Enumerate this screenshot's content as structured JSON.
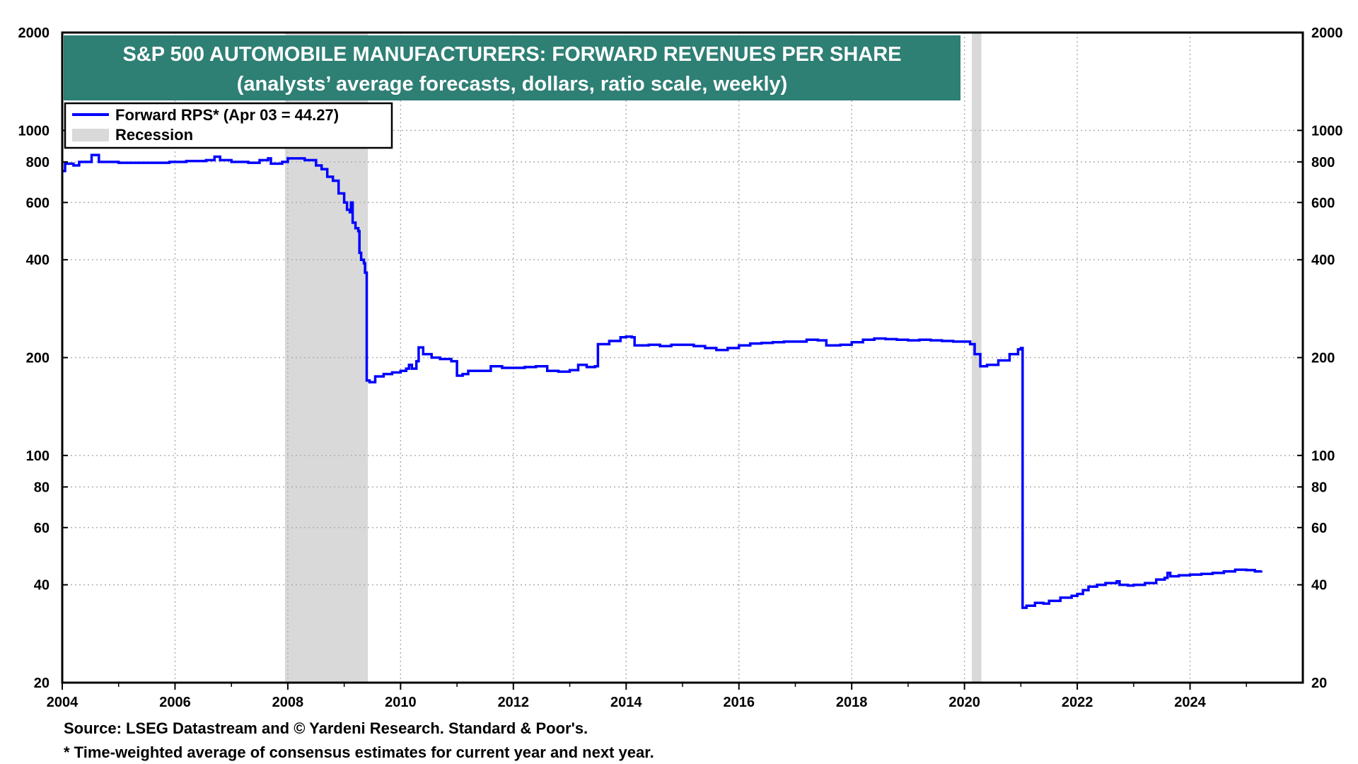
{
  "chart_data": {
    "type": "line",
    "title": "S&P 500 AUTOMOBILE MANUFACTURERS: FORWARD REVENUES PER SHARE",
    "subtitle": "(analysts’ average forecasts, dollars, ratio scale, weekly)",
    "scale": "log",
    "ylim": [
      20,
      2000
    ],
    "xlim": [
      2004.0,
      2026.0
    ],
    "y_ticks": [
      "20",
      "40",
      "60",
      "80",
      "100",
      "200",
      "400",
      "600",
      "800",
      "1000",
      "2000"
    ],
    "y_tick_values": [
      20,
      40,
      60,
      80,
      100,
      200,
      400,
      600,
      800,
      1000,
      2000
    ],
    "x_ticks": [
      "2004",
      "2006",
      "2008",
      "2010",
      "2012",
      "2014",
      "2016",
      "2018",
      "2020",
      "2022",
      "2024"
    ],
    "x_tick_values": [
      2004,
      2006,
      2008,
      2010,
      2012,
      2014,
      2016,
      2018,
      2020,
      2022,
      2024
    ],
    "legend": [
      {
        "label": "Forward RPS* (Apr 03 = 44.27)",
        "kind": "line",
        "color": "#0000ff"
      },
      {
        "label": "Recession",
        "kind": "box",
        "color": "#d9d9d9"
      }
    ],
    "recessions": [
      [
        2007.95,
        2009.42
      ],
      [
        2020.13,
        2020.3
      ]
    ],
    "series": [
      {
        "name": "Forward RPS*",
        "color": "#0000ff",
        "points": [
          [
            2004.0,
            750
          ],
          [
            2004.05,
            790
          ],
          [
            2004.15,
            790
          ],
          [
            2004.2,
            780
          ],
          [
            2004.3,
            800
          ],
          [
            2004.45,
            800
          ],
          [
            2004.52,
            840
          ],
          [
            2004.6,
            840
          ],
          [
            2004.65,
            800
          ],
          [
            2005.0,
            795
          ],
          [
            2005.3,
            795
          ],
          [
            2005.6,
            795
          ],
          [
            2005.9,
            800
          ],
          [
            2006.2,
            805
          ],
          [
            2006.4,
            805
          ],
          [
            2006.55,
            810
          ],
          [
            2006.7,
            830
          ],
          [
            2006.8,
            810
          ],
          [
            2007.0,
            800
          ],
          [
            2007.3,
            795
          ],
          [
            2007.5,
            810
          ],
          [
            2007.65,
            820
          ],
          [
            2007.7,
            790
          ],
          [
            2007.9,
            800
          ],
          [
            2008.0,
            820
          ],
          [
            2008.2,
            820
          ],
          [
            2008.3,
            810
          ],
          [
            2008.5,
            780
          ],
          [
            2008.6,
            760
          ],
          [
            2008.7,
            720
          ],
          [
            2008.8,
            700
          ],
          [
            2008.9,
            640
          ],
          [
            2009.0,
            600
          ],
          [
            2009.05,
            570
          ],
          [
            2009.1,
            560
          ],
          [
            2009.12,
            600
          ],
          [
            2009.15,
            520
          ],
          [
            2009.2,
            500
          ],
          [
            2009.25,
            490
          ],
          [
            2009.27,
            420
          ],
          [
            2009.3,
            400
          ],
          [
            2009.35,
            390
          ],
          [
            2009.37,
            365
          ],
          [
            2009.4,
            170
          ],
          [
            2009.45,
            168
          ],
          [
            2009.55,
            175
          ],
          [
            2009.7,
            178
          ],
          [
            2009.85,
            180
          ],
          [
            2010.0,
            182
          ],
          [
            2010.1,
            185
          ],
          [
            2010.15,
            190
          ],
          [
            2010.2,
            185
          ],
          [
            2010.28,
            195
          ],
          [
            2010.32,
            215
          ],
          [
            2010.4,
            205
          ],
          [
            2010.55,
            200
          ],
          [
            2010.7,
            198
          ],
          [
            2010.9,
            195
          ],
          [
            2011.0,
            176
          ],
          [
            2011.1,
            178
          ],
          [
            2011.2,
            182
          ],
          [
            2011.4,
            182
          ],
          [
            2011.6,
            188
          ],
          [
            2011.8,
            186
          ],
          [
            2012.0,
            186
          ],
          [
            2012.2,
            187
          ],
          [
            2012.4,
            188
          ],
          [
            2012.6,
            182
          ],
          [
            2012.8,
            181
          ],
          [
            2013.0,
            183
          ],
          [
            2013.15,
            190
          ],
          [
            2013.3,
            187
          ],
          [
            2013.45,
            188
          ],
          [
            2013.5,
            220
          ],
          [
            2013.7,
            225
          ],
          [
            2013.9,
            231
          ],
          [
            2014.0,
            232
          ],
          [
            2014.1,
            231
          ],
          [
            2014.15,
            218
          ],
          [
            2014.4,
            219
          ],
          [
            2014.6,
            217
          ],
          [
            2014.8,
            219
          ],
          [
            2015.0,
            219
          ],
          [
            2015.2,
            217
          ],
          [
            2015.4,
            214
          ],
          [
            2015.6,
            211
          ],
          [
            2015.8,
            214
          ],
          [
            2016.0,
            218
          ],
          [
            2016.2,
            221
          ],
          [
            2016.4,
            222
          ],
          [
            2016.6,
            223
          ],
          [
            2016.8,
            224
          ],
          [
            2017.0,
            224
          ],
          [
            2017.2,
            227
          ],
          [
            2017.4,
            226
          ],
          [
            2017.55,
            218
          ],
          [
            2017.8,
            219
          ],
          [
            2018.0,
            223
          ],
          [
            2018.2,
            227
          ],
          [
            2018.4,
            229
          ],
          [
            2018.6,
            228
          ],
          [
            2018.8,
            227
          ],
          [
            2019.0,
            226
          ],
          [
            2019.2,
            227
          ],
          [
            2019.4,
            226
          ],
          [
            2019.6,
            225
          ],
          [
            2019.8,
            224
          ],
          [
            2020.0,
            224
          ],
          [
            2020.1,
            220
          ],
          [
            2020.18,
            205
          ],
          [
            2020.28,
            188
          ],
          [
            2020.4,
            190
          ],
          [
            2020.6,
            196
          ],
          [
            2020.8,
            205
          ],
          [
            2020.95,
            212
          ],
          [
            2021.0,
            214
          ],
          [
            2021.03,
            34
          ],
          [
            2021.1,
            34.5
          ],
          [
            2021.25,
            35.2
          ],
          [
            2021.4,
            35
          ],
          [
            2021.5,
            35.7
          ],
          [
            2021.7,
            36.5
          ],
          [
            2021.9,
            37
          ],
          [
            2022.0,
            37.5
          ],
          [
            2022.1,
            38.5
          ],
          [
            2022.2,
            39.5
          ],
          [
            2022.35,
            40
          ],
          [
            2022.5,
            40.5
          ],
          [
            2022.7,
            41
          ],
          [
            2022.75,
            40
          ],
          [
            2022.9,
            39.8
          ],
          [
            2023.0,
            40
          ],
          [
            2023.2,
            40.5
          ],
          [
            2023.4,
            41.5
          ],
          [
            2023.55,
            42
          ],
          [
            2023.6,
            43.5
          ],
          [
            2023.65,
            42.5
          ],
          [
            2023.8,
            42.8
          ],
          [
            2024.0,
            43
          ],
          [
            2024.2,
            43.2
          ],
          [
            2024.4,
            43.5
          ],
          [
            2024.6,
            44
          ],
          [
            2024.8,
            44.5
          ],
          [
            2025.0,
            44.4
          ],
          [
            2025.15,
            44
          ],
          [
            2025.26,
            44.27
          ]
        ]
      }
    ]
  },
  "footer": {
    "source": "Source: LSEG Datastream and © Yardeni Research. Standard & Poor's.",
    "note": "* Time-weighted average of consensus estimates for current year and next year."
  }
}
